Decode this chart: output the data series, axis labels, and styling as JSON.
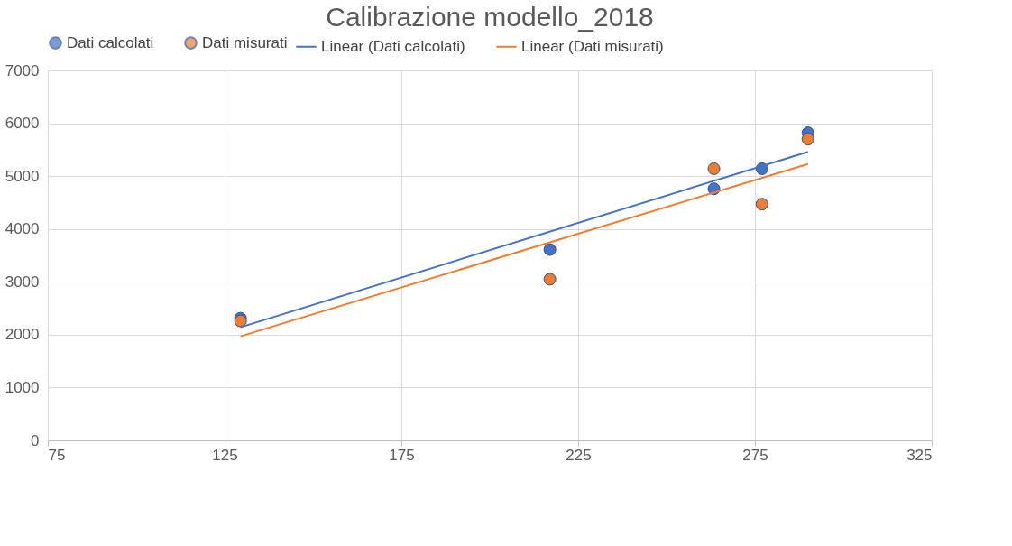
{
  "chart_data": {
    "type": "scatter",
    "title": "Calibrazione modello_2018",
    "xlim": [
      75,
      325
    ],
    "xticks": [
      75,
      125,
      175,
      225,
      275,
      325
    ],
    "ylim": [
      0,
      7000
    ],
    "yticks": [
      0,
      1000,
      2000,
      3000,
      4000,
      5000,
      6000,
      7000
    ],
    "grid": true,
    "legend": "top",
    "series": [
      {
        "name": "Dati calcolati",
        "marker": "circle",
        "color": "#4472c4",
        "x": [
          129.5,
          217,
          263.4,
          277,
          290
        ],
        "values": [
          2310,
          3610,
          4760,
          5140,
          5820
        ]
      },
      {
        "name": "Dati misurati",
        "marker": "circle",
        "color": "#ed7d31",
        "x": [
          129.5,
          217,
          263.4,
          277,
          290
        ],
        "values": [
          2260,
          3050,
          5140,
          4470,
          5700
        ]
      },
      {
        "name": "Linear (Dati calcolati)",
        "type": "line",
        "marker": "none",
        "color": "#4472c4",
        "x": [
          129.5,
          290
        ],
        "values": [
          2140,
          5460
        ]
      },
      {
        "name": "Linear (Dati misurati)",
        "type": "line",
        "marker": "none",
        "color": "#ed7d31",
        "x": [
          129.5,
          290
        ],
        "values": [
          1970,
          5230
        ]
      }
    ]
  }
}
